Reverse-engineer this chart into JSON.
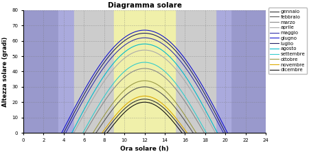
{
  "title": "Diagramma solare",
  "xlabel": "Ora solare (h)",
  "ylabel": "Altezza solare (gradi)",
  "xlim": [
    0,
    24
  ],
  "ylim": [
    0,
    80
  ],
  "xticks": [
    0,
    2,
    4,
    6,
    8,
    10,
    12,
    14,
    16,
    18,
    20,
    22,
    24
  ],
  "yticks": [
    0,
    10,
    20,
    30,
    40,
    50,
    60,
    70,
    80
  ],
  "months": [
    "gennaio",
    "febbraio",
    "marzo",
    "aprile",
    "maggio",
    "giugno",
    "luglio",
    "agosto",
    "settembre",
    "ottobre",
    "novembre",
    "dicembre"
  ],
  "line_colors": [
    "#333333",
    "#555555",
    "#888888",
    "#aaaaaa",
    "#3333aa",
    "#1111cc",
    "#222266",
    "#00bbcc",
    "#33cccc",
    "#999944",
    "#ddaa00",
    "#111111"
  ],
  "max_altitudes": [
    22,
    30,
    42,
    54,
    62,
    67,
    65,
    58,
    46,
    34,
    24,
    20
  ],
  "sunrise_hours": [
    8.0,
    7.2,
    6.1,
    5.0,
    4.2,
    3.8,
    4.0,
    4.8,
    5.9,
    6.9,
    7.8,
    8.3
  ],
  "bg_night": "#9999cc",
  "bg_blue_mid": "#aaaadd",
  "bg_gray": "#cccccc",
  "bg_yellow": "#f0f0aa",
  "night_boundary": 3.5,
  "blue_boundary": 5.0,
  "gray_boundary": 7.5,
  "yellow_boundary": 9.0
}
